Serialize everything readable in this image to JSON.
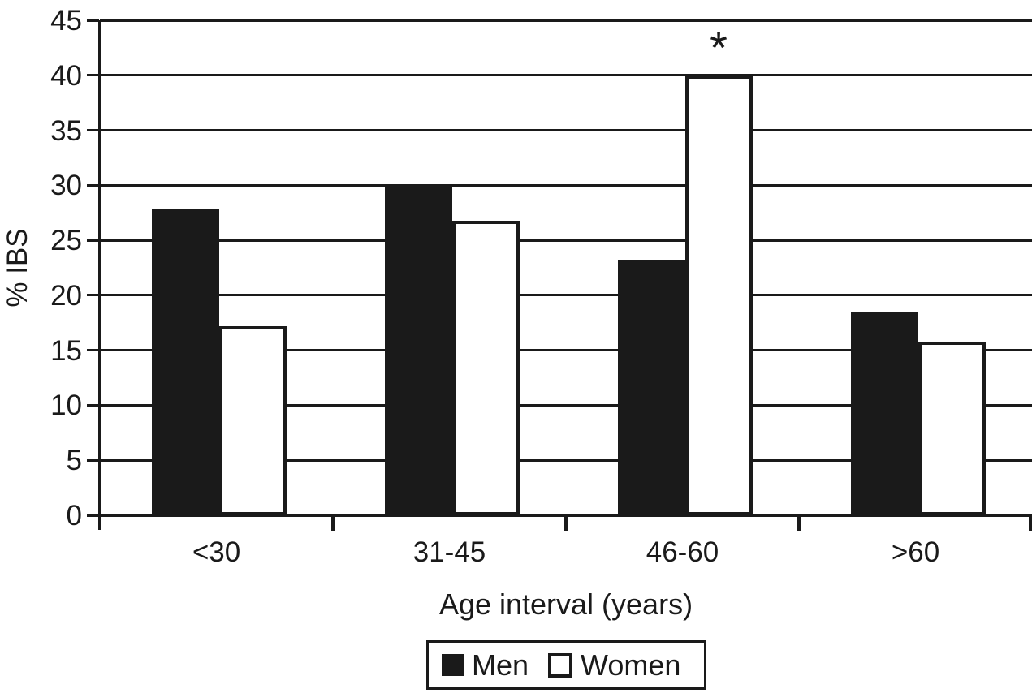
{
  "chart_data": {
    "type": "bar",
    "title": "",
    "xlabel": "Age interval (years)",
    "ylabel": "% IBS",
    "ylim": [
      0,
      45
    ],
    "ytick_step": 5,
    "ytick_labels": [
      "0",
      "5",
      "10",
      "15",
      "20",
      "25",
      "30",
      "35",
      "40",
      "45"
    ],
    "categories": [
      "<30",
      "31-45",
      "46-60",
      ">60"
    ],
    "series": [
      {
        "name": "Men",
        "fill": "#1a1a1a",
        "values": [
          27.8,
          30.0,
          23.2,
          18.5
        ]
      },
      {
        "name": "Women",
        "fill": "#ffffff",
        "border": "#1a1a1a",
        "values": [
          17.2,
          26.8,
          40.0,
          15.8
        ]
      }
    ],
    "annotations": [
      {
        "text": "*",
        "category": "46-60",
        "series": "Women"
      }
    ],
    "grid": "horizontal",
    "legend_position": "bottom",
    "colors": {
      "ink": "#1a1a1a",
      "background": "#ffffff"
    }
  }
}
